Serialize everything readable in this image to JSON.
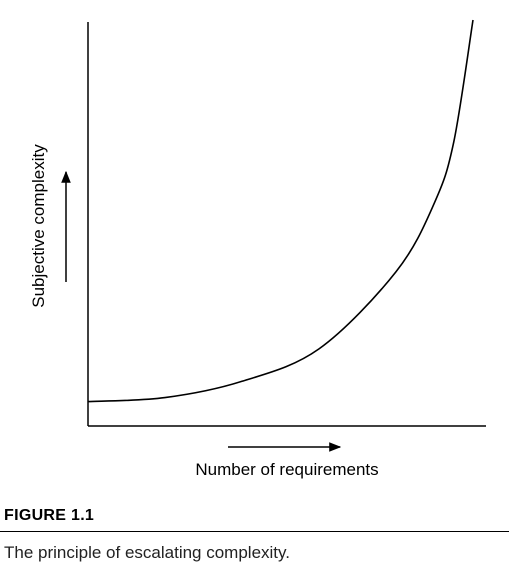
{
  "chart_data": {
    "type": "line",
    "xlabel": "Number of requirements",
    "ylabel": "Subjective complexity",
    "series": [
      {
        "curve": "escalating",
        "x": [
          0,
          0.2,
          0.4,
          0.6,
          0.8,
          0.9,
          0.95,
          1.0
        ],
        "y": [
          0.06,
          0.07,
          0.11,
          0.19,
          0.38,
          0.55,
          0.7,
          1.0
        ]
      }
    ],
    "xlim": [
      0,
      1
    ],
    "ylim": [
      0,
      1
    ],
    "grid": false,
    "legend": "none",
    "ticks": false
  },
  "figure": {
    "label": "FIGURE 1.1",
    "caption": "The principle of escalating complexity."
  }
}
